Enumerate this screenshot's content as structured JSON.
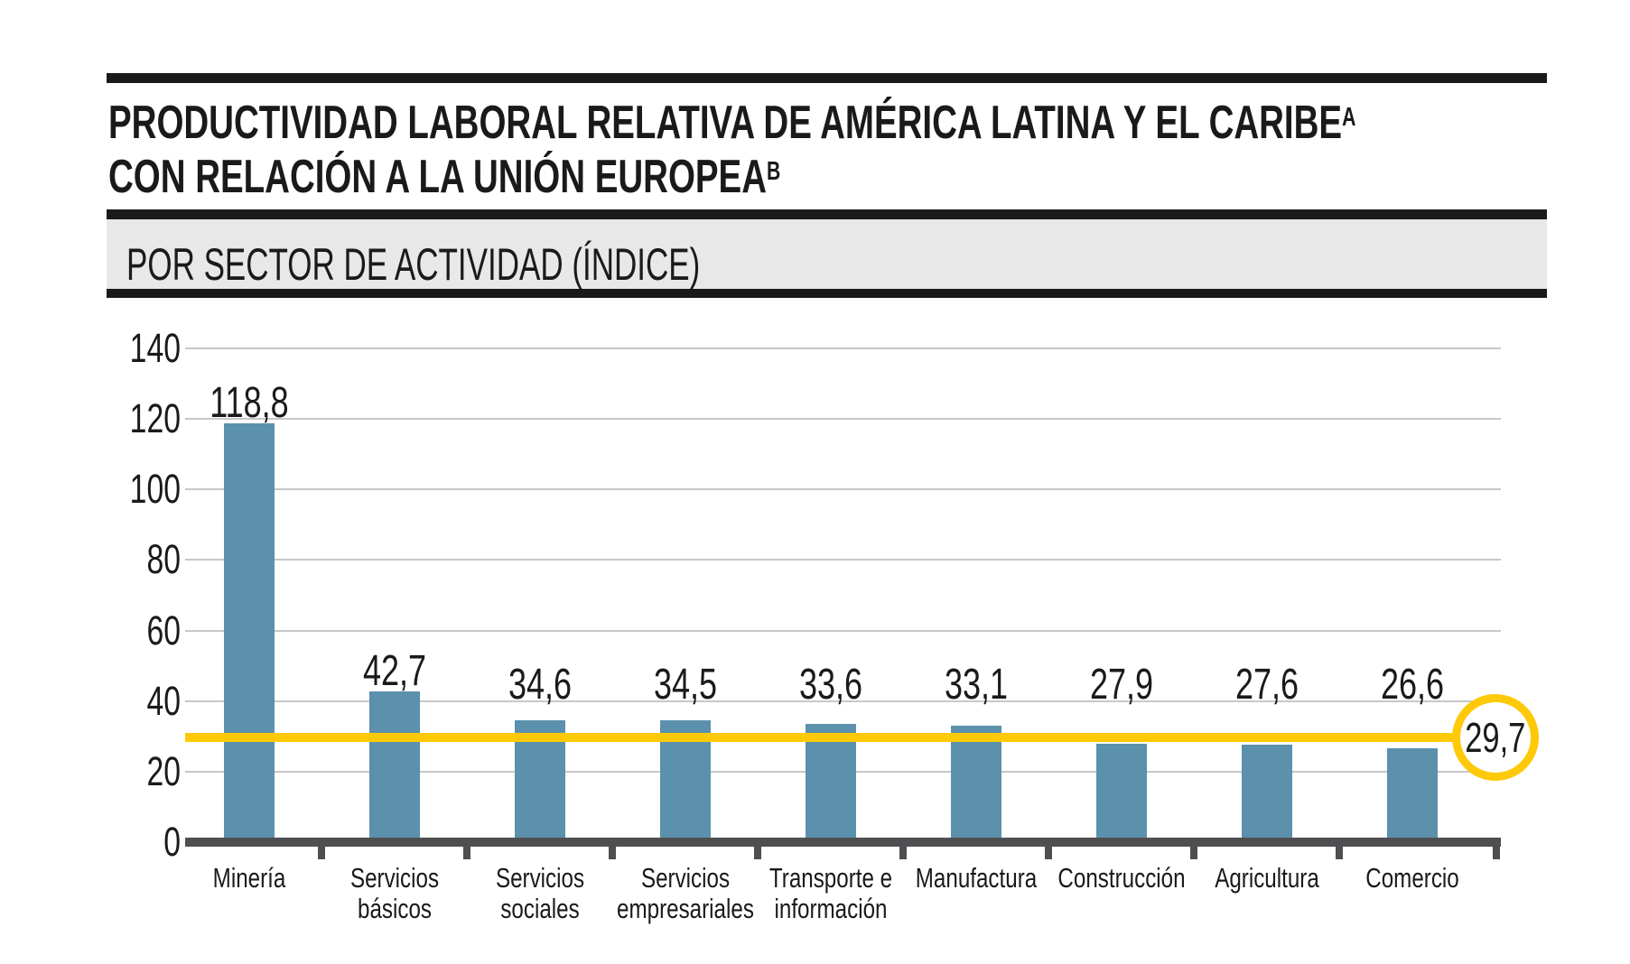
{
  "header": {
    "title_line1": "PRODUCTIVIDAD LABORAL RELATIVA DE AMÉRICA LATINA Y EL CARIBE",
    "title_line1_sup": "A",
    "title_line2": "CON RELACIÓN A LA UNIÓN EUROPEA",
    "title_line2_sup": "B",
    "band_label": "POR SECTOR DE ACTIVIDAD (ÍNDICE)"
  },
  "chart_data": {
    "type": "bar",
    "title": "PRODUCTIVIDAD LABORAL RELATIVA DE AMÉRICA LATINA Y EL CARIBE (A) CON RELACIÓN A LA UNIÓN EUROPEA (B)",
    "subtitle": "POR SECTOR DE ACTIVIDAD (ÍNDICE)",
    "categories": [
      "Minería",
      "Servicios básicos",
      "Servicios sociales",
      "Servicios empresariales",
      "Transporte e información",
      "Manufactura",
      "Construcción",
      "Agricultura",
      "Comercio"
    ],
    "category_label_lines": [
      [
        "Minería"
      ],
      [
        "Servicios",
        "básicos"
      ],
      [
        "Servicios",
        "sociales"
      ],
      [
        "Servicios",
        "empresariales"
      ],
      [
        "Transporte e",
        "información"
      ],
      [
        "Manufactura"
      ],
      [
        "Construcción"
      ],
      [
        "Agricultura"
      ],
      [
        "Comercio"
      ]
    ],
    "values": [
      118.8,
      42.7,
      34.6,
      34.5,
      33.6,
      33.1,
      27.9,
      27.6,
      26.6
    ],
    "value_labels": [
      "118,8",
      "42,7",
      "34,6",
      "34,5",
      "33,6",
      "33,1",
      "27,9",
      "27,6",
      "26,6"
    ],
    "ylim": [
      0,
      140
    ],
    "ytick_values": [
      0,
      20,
      40,
      60,
      80,
      100,
      120,
      140
    ],
    "ytick_labels": [
      "0",
      "20",
      "40",
      "60",
      "80",
      "100",
      "120",
      "140"
    ],
    "grid": true,
    "legend_position": "none",
    "xlabel": "",
    "ylabel": "",
    "reference_line": {
      "value": 29.7,
      "label": "29,7"
    },
    "colors": {
      "bar": "#5b91ac",
      "reference": "#fec908",
      "grid": "#c8c8c8",
      "axis": "#4f4f51",
      "text": "#1a1a1a",
      "band_bg": "#e8e8e8",
      "rule": "#1a1a1a"
    }
  }
}
